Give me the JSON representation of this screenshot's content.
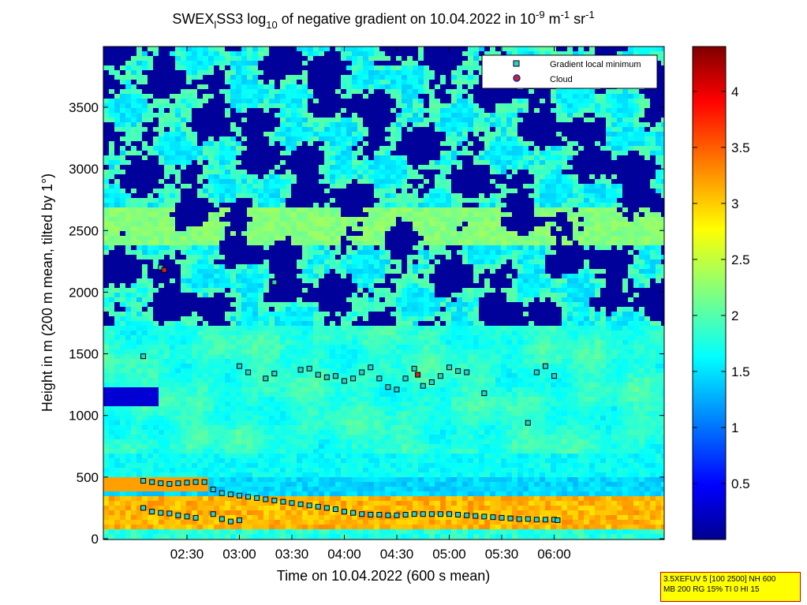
{
  "chart_data": {
    "type": "heatmap",
    "title": {
      "prefix": "SWEX",
      "sub": "l",
      "mid": "SS3 log",
      "sub2": "10",
      "rest": " of negative gradient on 10.04.2022 in 10",
      "exp1": "-9",
      "unit1": " m",
      "exp2": "-1",
      "unit2": " sr",
      "exp3": "-1"
    },
    "xlabel": "Time on 10.04.2022 (600 s mean)",
    "ylabel": "Height in m (200 m mean, tilted by 1°)",
    "x_ticks": [
      "02:30",
      "03:00",
      "03:30",
      "04:00",
      "04:30",
      "05:00",
      "05:30",
      "06:00"
    ],
    "y_ticks": [
      "0",
      "500",
      "1000",
      "1500",
      "2000",
      "2500",
      "3000",
      "3500"
    ],
    "ylim": [
      0,
      4000
    ],
    "colorbar_ticks": [
      "0.5",
      "1",
      "1.5",
      "2",
      "2.5",
      "3",
      "3.5",
      "4"
    ],
    "colorbar_range": [
      0,
      4.4
    ],
    "colormap": [
      "#00008f",
      "#0000ff",
      "#0080ff",
      "#00ffff",
      "#80ff80",
      "#ffff00",
      "#ff8000",
      "#ff0000",
      "#800000"
    ],
    "legend": {
      "placement": "top-right",
      "entries": [
        {
          "label": "Gradient local minimum",
          "marker": "square",
          "color": "#33cccc"
        },
        {
          "label": "Cloud",
          "marker": "circle",
          "color": "#cc2222"
        }
      ]
    },
    "series": [
      {
        "name": "Gradient local minimum",
        "points": [
          [
            "02:05",
            470
          ],
          [
            "02:10",
            460
          ],
          [
            "02:15",
            450
          ],
          [
            "02:20",
            445
          ],
          [
            "02:25",
            450
          ],
          [
            "02:30",
            455
          ],
          [
            "02:35",
            460
          ],
          [
            "02:40",
            460
          ],
          [
            "02:45",
            400
          ],
          [
            "02:50",
            370
          ],
          [
            "02:55",
            360
          ],
          [
            "03:00",
            350
          ],
          [
            "03:05",
            340
          ],
          [
            "03:10",
            330
          ],
          [
            "03:15",
            320
          ],
          [
            "03:20",
            310
          ],
          [
            "03:25",
            300
          ],
          [
            "03:30",
            290
          ],
          [
            "03:35",
            280
          ],
          [
            "03:40",
            270
          ],
          [
            "03:45",
            260
          ],
          [
            "03:50",
            250
          ],
          [
            "03:55",
            240
          ],
          [
            "04:00",
            220
          ],
          [
            "04:05",
            210
          ],
          [
            "04:10",
            200
          ],
          [
            "04:15",
            195
          ],
          [
            "04:20",
            195
          ],
          [
            "04:25",
            190
          ],
          [
            "04:30",
            190
          ],
          [
            "04:35",
            195
          ],
          [
            "04:40",
            200
          ],
          [
            "04:45",
            200
          ],
          [
            "04:50",
            200
          ],
          [
            "04:55",
            200
          ],
          [
            "05:00",
            200
          ],
          [
            "05:05",
            195
          ],
          [
            "05:10",
            190
          ],
          [
            "05:15",
            185
          ],
          [
            "05:20",
            180
          ],
          [
            "05:25",
            175
          ],
          [
            "05:30",
            170
          ],
          [
            "05:35",
            165
          ],
          [
            "05:40",
            160
          ],
          [
            "05:45",
            160
          ],
          [
            "05:50",
            155
          ],
          [
            "05:55",
            155
          ],
          [
            "06:00",
            155
          ],
          [
            "06:02",
            150
          ],
          [
            "02:10",
            220
          ],
          [
            "02:15",
            210
          ],
          [
            "02:20",
            205
          ],
          [
            "02:25",
            190
          ],
          [
            "02:30",
            180
          ],
          [
            "02:35",
            170
          ],
          [
            "02:45",
            200
          ],
          [
            "02:50",
            160
          ],
          [
            "02:55",
            140
          ],
          [
            "03:00",
            150
          ],
          [
            "03:00",
            1400
          ],
          [
            "03:05",
            1350
          ],
          [
            "03:15",
            1300
          ],
          [
            "03:20",
            1340
          ],
          [
            "03:35",
            1370
          ],
          [
            "03:40",
            1380
          ],
          [
            "03:45",
            1330
          ],
          [
            "03:50",
            1310
          ],
          [
            "03:55",
            1320
          ],
          [
            "04:00",
            1280
          ],
          [
            "04:05",
            1300
          ],
          [
            "04:10",
            1350
          ],
          [
            "04:15",
            1390
          ],
          [
            "04:20",
            1300
          ],
          [
            "04:25",
            1230
          ],
          [
            "04:30",
            1210
          ],
          [
            "04:35",
            1300
          ],
          [
            "04:40",
            1380
          ],
          [
            "04:45",
            1240
          ],
          [
            "04:50",
            1270
          ],
          [
            "04:55",
            1320
          ],
          [
            "05:00",
            1390
          ],
          [
            "05:05",
            1360
          ],
          [
            "05:10",
            1350
          ],
          [
            "05:20",
            1180
          ],
          [
            "05:50",
            1350
          ],
          [
            "05:55",
            1400
          ],
          [
            "06:00",
            1320
          ],
          [
            "02:05",
            250
          ],
          [
            "02:05",
            1480
          ],
          [
            "02:15",
            2200
          ],
          [
            "03:20",
            2080
          ],
          [
            "05:45",
            940
          ]
        ]
      },
      {
        "name": "Cloud",
        "points": [
          [
            "02:17",
            2180
          ],
          [
            "04:42",
            1330
          ]
        ]
      }
    ]
  },
  "footer": {
    "line1": "3.5XEFUV 5 [100 2500] NH 600",
    "line2": "MB 200 RG 15% TI 0 HI 15"
  }
}
